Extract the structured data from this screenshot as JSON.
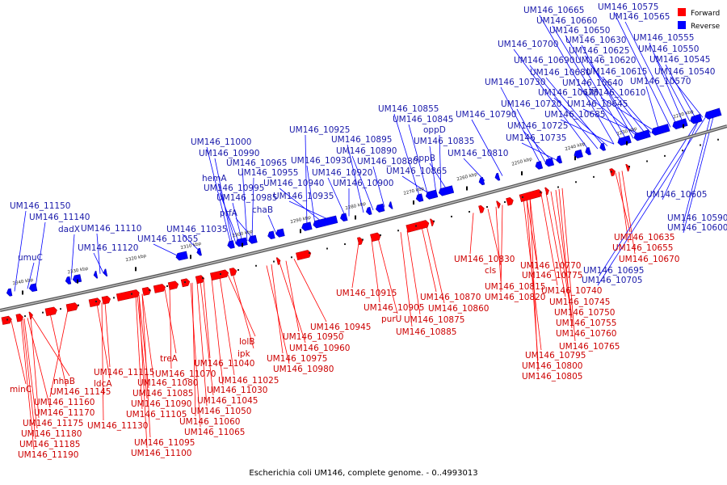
{
  "caption": "Escherichia coli UM146, complete genome. - 0..4993013",
  "legend": {
    "items": [
      {
        "label": "Forward",
        "color": "#ff0000"
      },
      {
        "label": "Reverse",
        "color": "#0000ff"
      }
    ]
  },
  "colors": {
    "forward": "#ff0000",
    "reverse": "#0000ff",
    "forward_label": "#cc0000",
    "reverse_label": "#1a1aaa",
    "backbone": "#777777"
  },
  "ticks": [
    "2340 kbp",
    "2330 kbp",
    "2320 kbp",
    "2310 kbp",
    "2300 kbp",
    "2290 kbp",
    "2280 kbp",
    "2270 kbp",
    "2260 kbp",
    "2250 kbp",
    "2240 kbp",
    "2230 kbp",
    "2220 kbp"
  ],
  "forward_genes": [
    "minC",
    "nhaB",
    "UM146_11145",
    "UM146_11160",
    "UM146_11170",
    "UM146_11175",
    "UM146_11180",
    "UM146_11185",
    "UM146_11190",
    "ldcA",
    "UM146_11130",
    "UM146_11115",
    "UM146_11080",
    "UM146_11085",
    "UM146_11090",
    "UM146_11105",
    "UM146_11095",
    "UM146_11100",
    "treA",
    "UM146_11070",
    "UM146_11045",
    "UM146_11050",
    "UM146_11060",
    "UM146_11065",
    "UM146_11040",
    "UM146_11030",
    "UM146_11025",
    "ipk",
    "lolB",
    "UM146_10980",
    "UM146_10975",
    "UM146_10960",
    "UM146_10950",
    "UM146_10945",
    "UM146_10915",
    "UM146_10905",
    "purU",
    "UM146_10885",
    "UM146_10875",
    "UM146_10870",
    "UM146_10860",
    "UM146_10830",
    "cls",
    "UM146_10815",
    "UM146_10820",
    "UM146_10770",
    "UM146_10775",
    "UM146_10740",
    "UM146_10745",
    "UM146_10750",
    "UM146_10755",
    "UM146_10760",
    "UM146_10765",
    "UM146_10795",
    "UM146_10800",
    "UM146_10805",
    "UM146_10635",
    "UM146_10655",
    "UM146_10670"
  ],
  "reverse_genes": [
    "UM146_11150",
    "UM146_11140",
    "umuC",
    "dadX",
    "UM146_11110",
    "UM146_11120",
    "UM146_11035",
    "UM146_11055",
    "UM146_11000",
    "UM146_10990",
    "hemA",
    "UM146_10965",
    "UM146_10955",
    "UM146_10995",
    "UM146_10985",
    "prfA",
    "chaB",
    "UM146_10925",
    "UM146_10930",
    "UM146_10940",
    "UM146_10935",
    "UM146_10895",
    "UM146_10890",
    "UM146_10920",
    "UM146_10880",
    "UM146_10900",
    "UM146_10855",
    "UM146_10845",
    "oppD",
    "UM146_10835",
    "oppB",
    "UM146_10865",
    "UM146_10810",
    "UM146_10790",
    "UM146_10730",
    "UM146_10720",
    "UM146_10725",
    "UM146_10735",
    "UM146_10700",
    "UM146_10690",
    "UM146_10680",
    "UM146_10675",
    "UM146_10685",
    "UM146_10665",
    "UM146_10660",
    "UM146_10650",
    "UM146_10630",
    "UM146_10625",
    "UM146_10620",
    "UM146_10615",
    "UM146_10640",
    "UM146_10645",
    "UM146_10610",
    "UM146_10575",
    "UM146_10565",
    "UM146_10555",
    "UM146_10550",
    "UM146_10545",
    "UM146_10540",
    "UM146_10570",
    "UM146_10605",
    "UM146_10590",
    "UM146_10600",
    "UM146_10695",
    "UM146_10705"
  ]
}
